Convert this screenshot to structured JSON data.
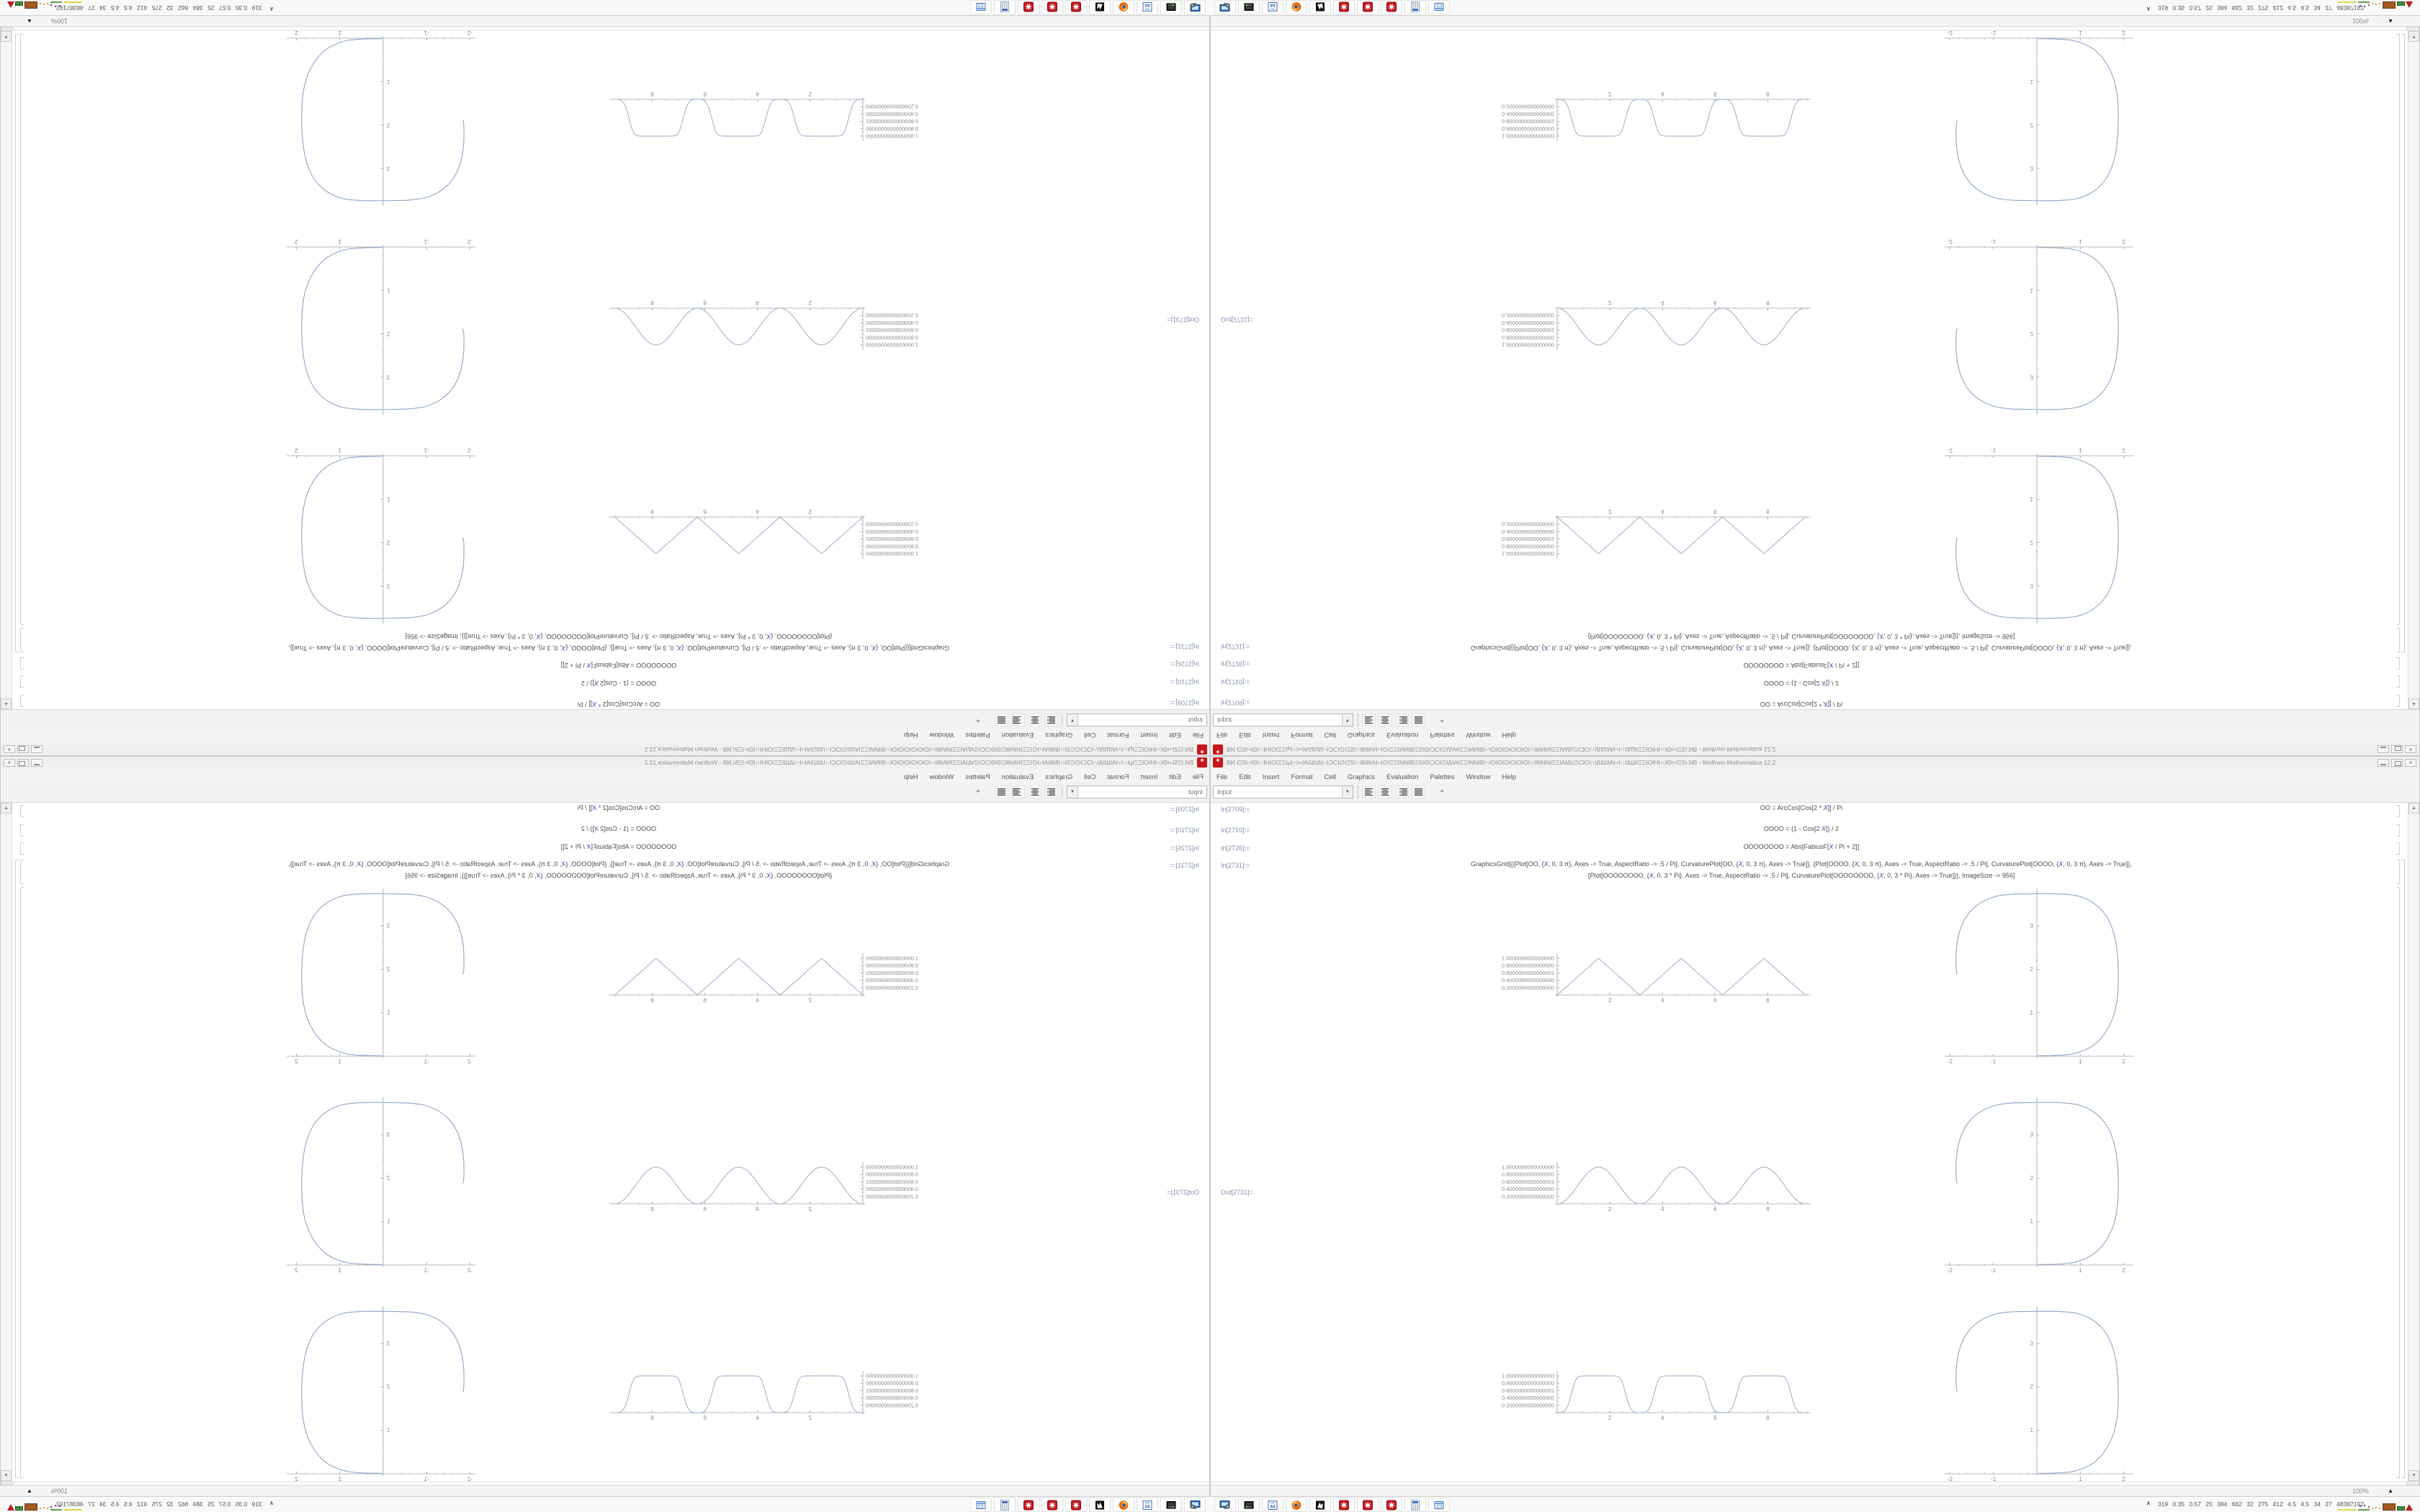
{
  "window": {
    "title": "ВИ.ΙΞ5Ι÷ΙΘΙ∩ΙΗΙΟΙΞΞΙμΙ∩Ι÷ΙΑΙШΙΔΙ∩ΙƆCΙ∅ΙΞ5Ι∩Ι8Ι8ΙΑΙ÷Ι∅ΙΞΞΙΝΝΙ8ΙΞ5ΙΘΙƆCΙ∅ΙΔΙΑΙΞΞΙΝΝΙ8Ι∩ΙΟΙΟΙΟΙΟΙΟΙΟΙ∩Ι8ΙΝΝΙΞΞΙΑΙΔΙ∅ΙƆCΙ∩ΙΔΙШΙΑΙ÷Ι∩ΙΔШΙΞΞΙΟΙΗΙ∩ΙΘΙ÷ΙΞ5Ι.NB - Wolfram Mathematica 12.2",
    "app_icon": "mathematica-spikey-icon",
    "close_glyph": "×"
  },
  "menu": {
    "items": [
      "File",
      "Edit",
      "Insert",
      "Format",
      "Cell",
      "Graphics",
      "Evaluation",
      "Palettes",
      "Window",
      "Help"
    ]
  },
  "toolbar": {
    "style_value": "Input",
    "dropdown_glyph": "▼",
    "justify_icons": [
      "align-left",
      "align-center",
      "align-right",
      "align-justify"
    ],
    "collapse_glyph": "◂"
  },
  "cells": {
    "inputs": [
      {
        "label": "In[2709]:=",
        "code": "OO = ArcCos[Cos[2 * X]] / Pi"
      },
      {
        "label": "In[2710]:=",
        "code": "OOOO = (1 - Cos[2 X]) / 2"
      },
      {
        "label": "In[2726]:=",
        "code": "OOOOOOOO = Abs[FabiusF[X / Pi + 2]]"
      },
      {
        "label": "In[2731]:=",
        "code": "GraphicsGrid[{{Plot[OO, {X, 0, 3 π}, Axes -> True, AspectRatio -> .5 / Pi], CurvaturePlot[OO, {X, 0, 3 π}, Axes -> True]}, {Plot[OOOO, {X, 0, 3 π}, Axes -> True, AspectRatio -> .5 / Pi], CurvaturePlot[OOOO, {X, 0, 3 π}, Axes -> True]},",
        "code2": "{Plot[OOOOOOOO, {X, 0, 3 * Pi}, Axes -> True, AspectRatio -> .5 / Pi], CurvaturePlot[OOOOOOOO, {X, 0, 3 * Pi}, Axes -> True]}}, ImageSize -> 956]"
      }
    ],
    "output_label": "Out[2731]="
  },
  "status": {
    "zoom": "100%",
    "zoom_menu_glyph": "▲"
  },
  "taskbar": {
    "icons": [
      "system-monitor",
      "disk-utility",
      "backup-64",
      "firefox",
      "gimp-wolf",
      "mathematica-1",
      "mathematica-2",
      "mathematica-3",
      "calculator",
      "virtual-desktop"
    ],
    "tray_chevron": "∧",
    "tray_text": "319 0.35 0.57 25 384 662 32 275 412 4.5 4.5 34 27 48387192"
  },
  "chart_data": {
    "layout": "GraphicsGrid 3 rows x 2 columns, mirrored 4-way across the screen",
    "wave_axis": {
      "x_range": [
        0,
        9.42
      ],
      "x_ticks": [
        2,
        4,
        6,
        8
      ],
      "y_range": [
        0,
        1
      ],
      "y_tick_labels": [
        "1.0000000000000000",
        "0.8000000000000000",
        "0.6000000000000001",
        "0.4000000000000000",
        "0.2000000000000000"
      ],
      "y_tick_values": [
        1.0,
        0.8,
        0.6,
        0.4,
        0.2
      ]
    },
    "wave_rows": [
      {
        "type": "line",
        "shape": "triangle",
        "formula": "ArcCos[Cos[2 X]]/Pi",
        "peaks_x": [
          1.57,
          4.71,
          7.85
        ],
        "zeros_x": [
          0,
          3.14,
          6.28,
          9.42
        ],
        "y_max": 1
      },
      {
        "type": "line",
        "shape": "sin-squared",
        "formula": "(1 - Cos[2 X])/2",
        "peaks_x": [
          1.57,
          4.71,
          7.85
        ],
        "zeros_x": [
          0,
          3.14,
          6.28,
          9.42
        ],
        "y_max": 1
      },
      {
        "type": "line",
        "shape": "flat-top-bump",
        "formula": "Abs[FabiusF[X/Pi + 2]]",
        "peaks_x": [
          1.57,
          4.71,
          7.85
        ],
        "zeros_x": [
          0,
          3.14,
          6.28,
          9.42
        ],
        "y_max": 1
      }
    ],
    "curvature_axis": {
      "x_ticks": [
        -2,
        -1,
        1,
        2
      ],
      "y_ticks": [
        1,
        2,
        3
      ],
      "x_range": [
        -2.1,
        2.2
      ],
      "y_range": [
        0,
        3.85
      ]
    },
    "curvature_points": [
      [
        0.02,
        0.01
      ],
      [
        0.45,
        0.02
      ],
      [
        0.8,
        0.05
      ],
      [
        1.05,
        0.12
      ],
      [
        1.3,
        0.25
      ],
      [
        1.5,
        0.44
      ],
      [
        1.66,
        0.68
      ],
      [
        1.78,
        0.97
      ],
      [
        1.84,
        1.25
      ],
      [
        1.87,
        1.55
      ],
      [
        1.875,
        1.9
      ],
      [
        1.865,
        2.2
      ],
      [
        1.83,
        2.55
      ],
      [
        1.76,
        2.87
      ],
      [
        1.64,
        3.16
      ],
      [
        1.46,
        3.4
      ],
      [
        1.22,
        3.58
      ],
      [
        0.95,
        3.69
      ],
      [
        0.6,
        3.735
      ],
      [
        0.2,
        3.745
      ],
      [
        -0.2,
        3.74
      ],
      [
        -0.6,
        3.73
      ],
      [
        -0.95,
        3.68
      ],
      [
        -1.25,
        3.56
      ],
      [
        -1.5,
        3.37
      ],
      [
        -1.68,
        3.12
      ],
      [
        -1.79,
        2.83
      ],
      [
        -1.845,
        2.52
      ],
      [
        -1.86,
        2.2
      ],
      [
        -1.85,
        1.95
      ],
      [
        -1.83,
        1.88
      ]
    ],
    "curve_color": "#8ea6c8",
    "axis_color": "#a3a3a3",
    "tick_label_color": "#8a8a8a"
  },
  "colors": {
    "app_red": "#c4161c",
    "chrome_gray": "#f0f0f0",
    "code_text": "#4c4c4c",
    "variable_blue": "#2e51b0",
    "cell_label": "#8292ab"
  }
}
